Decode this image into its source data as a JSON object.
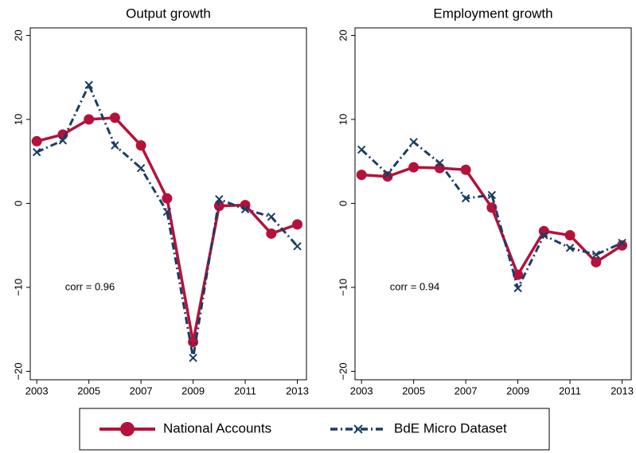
{
  "chart_data": [
    {
      "type": "line",
      "title": "Output growth",
      "annotation": "corr = 0.96",
      "x": [
        2003,
        2004,
        2005,
        2006,
        2007,
        2008,
        2009,
        2010,
        2011,
        2012,
        2013
      ],
      "xlim": [
        2002.75,
        2013.35
      ],
      "xticks": [
        2003,
        2005,
        2007,
        2009,
        2011,
        2013
      ],
      "ylim": [
        -21,
        20.9
      ],
      "yticks": [
        {
          "value": -20,
          "label": "−20"
        },
        {
          "value": -10,
          "label": "−10"
        },
        0,
        10,
        20
      ],
      "series": [
        {
          "name": "National Accounts",
          "color": "#b5123b",
          "style": "solid",
          "marker": "circle",
          "values": [
            7.4,
            8.2,
            10.0,
            10.2,
            6.9,
            0.6,
            -16.5,
            -0.3,
            -0.2,
            -3.6,
            -2.5
          ]
        },
        {
          "name": "BdE Micro Dataset",
          "color": "#1a3d64",
          "style": "dashdot",
          "marker": "x",
          "values": [
            6.1,
            7.5,
            14.1,
            6.9,
            4.2,
            -1.0,
            -18.4,
            0.5,
            -0.7,
            -1.6,
            -5.1
          ]
        }
      ]
    },
    {
      "type": "line",
      "title": "Employment growth",
      "annotation": "corr = 0.94",
      "x": [
        2003,
        2004,
        2005,
        2006,
        2007,
        2008,
        2009,
        2010,
        2011,
        2012,
        2013
      ],
      "xlim": [
        2002.75,
        2013.35
      ],
      "xticks": [
        2003,
        2005,
        2007,
        2009,
        2011,
        2013
      ],
      "ylim": [
        -21,
        20.9
      ],
      "yticks": [
        {
          "value": -20,
          "label": "−20"
        },
        {
          "value": -10,
          "label": "−10"
        },
        0,
        10,
        20
      ],
      "series": [
        {
          "color": "#b5123b",
          "style": "solid",
          "marker": "circle",
          "values": [
            3.4,
            3.2,
            4.3,
            4.2,
            4.0,
            -0.5,
            -8.5,
            -3.3,
            -3.8,
            -7.0,
            -5.0
          ]
        },
        {
          "color": "#1a3d64",
          "style": "dashdot",
          "marker": "x",
          "values": [
            6.4,
            3.5,
            7.3,
            4.8,
            0.6,
            1.0,
            -10.1,
            -3.8,
            -5.3,
            -6.1,
            -4.7
          ]
        }
      ]
    }
  ]
}
